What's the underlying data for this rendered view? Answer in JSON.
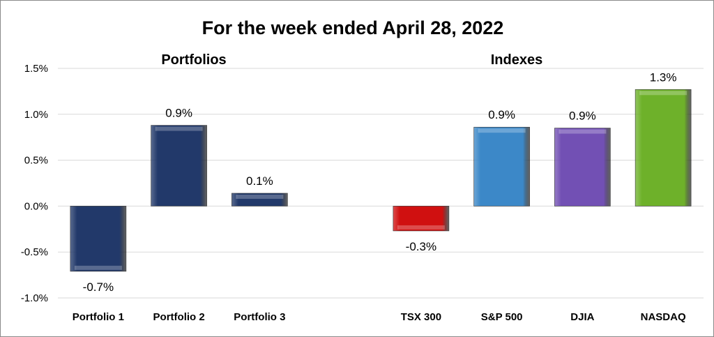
{
  "chart_data": {
    "type": "bar",
    "title": "For the week ended April 28, 2022",
    "groups": [
      {
        "label": "Portfolios",
        "categories": [
          "Portfolio 1",
          "Portfolio 2",
          "Portfolio 3"
        ]
      },
      {
        "label": "Indexes",
        "categories": [
          "TSX 300",
          "S&P 500",
          "DJIA",
          "NASDAQ"
        ]
      }
    ],
    "categories": [
      "Portfolio 1",
      "Portfolio 2",
      "Portfolio 3",
      "TSX 300",
      "S&P 500",
      "DJIA",
      "NASDAQ"
    ],
    "values": [
      -0.71,
      0.88,
      0.14,
      -0.27,
      0.86,
      0.85,
      1.27
    ],
    "data_labels": [
      "-0.7%",
      "0.9%",
      "0.1%",
      "-0.3%",
      "0.9%",
      "0.9%",
      "1.3%"
    ],
    "colors": [
      "#22396a",
      "#22396a",
      "#22396a",
      "#d01010",
      "#3c88c8",
      "#7250b4",
      "#6eb12a"
    ],
    "ylim": [
      -1.0,
      1.5
    ],
    "yticks": [
      "-1.0%",
      "-0.5%",
      "0.0%",
      "0.5%",
      "1.0%",
      "1.5%"
    ],
    "grid": true,
    "xlabel": "",
    "ylabel": ""
  }
}
